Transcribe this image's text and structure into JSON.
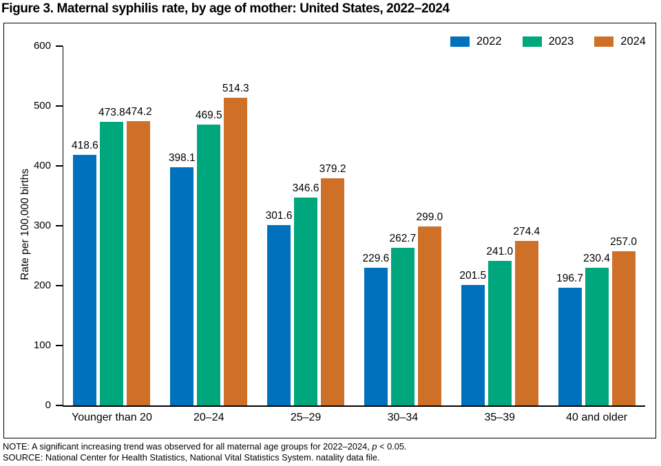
{
  "figure": {
    "title": "Figure 3. Maternal syphilis rate, by age of mother: United States, 2022–2024",
    "note": {
      "prefix": "NOTE: A significant increasing trend was observed for all maternal age groups for 2022–2024, ",
      "italic": "p",
      "suffix": " < 0.05."
    },
    "source": "SOURCE: National Center for Health Statistics, National Vital Statistics System. natality data file."
  },
  "chart_data": {
    "type": "bar",
    "title": "Figure 3. Maternal syphilis rate, by age of mother: United States, 2022–2024",
    "xlabel": "",
    "ylabel": "Rate per 100,000 births",
    "ylim": [
      0,
      600
    ],
    "yticks": [
      0,
      100,
      200,
      300,
      400,
      500,
      600
    ],
    "grid": false,
    "legend_position": "top-right",
    "value_labels": true,
    "categories": [
      "Younger than 20",
      "20–24",
      "25–29",
      "30–34",
      "35–39",
      "40 and older"
    ],
    "series": [
      {
        "name": "2022",
        "color": "#0071BC",
        "values": [
          418.6,
          398.1,
          301.6,
          229.6,
          201.5,
          196.7
        ]
      },
      {
        "name": "2023",
        "color": "#00A67C",
        "values": [
          473.8,
          469.5,
          346.6,
          262.7,
          241.0,
          230.4
        ]
      },
      {
        "name": "2024",
        "color": "#CF7029",
        "values": [
          474.2,
          514.3,
          379.2,
          299.0,
          274.4,
          257.0
        ]
      }
    ]
  }
}
